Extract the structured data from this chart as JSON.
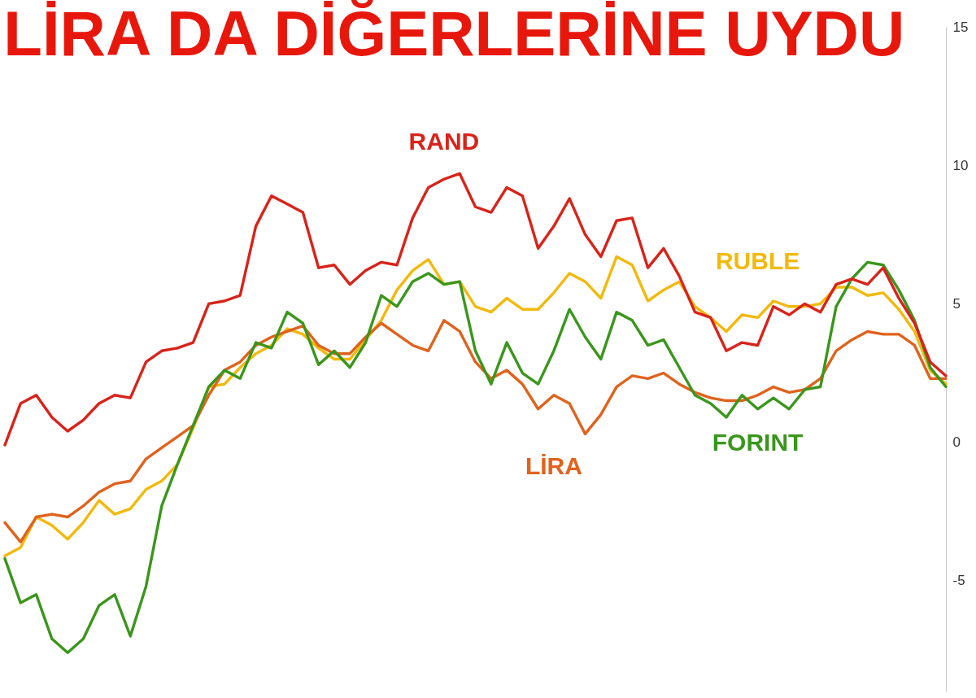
{
  "chart_data": {
    "type": "line",
    "title": "LİRA DA DİĞERLERİNE UYDU",
    "categories": [
      null,
      null,
      null,
      null,
      null,
      null,
      null,
      null,
      null,
      null,
      null,
      null,
      null,
      null,
      null,
      null,
      null,
      null,
      null,
      null,
      null,
      null,
      null,
      null,
      null,
      null,
      null,
      null,
      null,
      null,
      null,
      null,
      null,
      null,
      null,
      null,
      null,
      null,
      null,
      null,
      null,
      null,
      null,
      null,
      null,
      null,
      null,
      null,
      null,
      null,
      null,
      null,
      null,
      null,
      null,
      null,
      null,
      null,
      null,
      null,
      null
    ],
    "series": [
      {
        "name": "RUBLE",
        "color": "#f2b90c",
        "values": [
          -4.1,
          -3.8,
          -2.7,
          -3.0,
          -3.5,
          -2.9,
          -2.1,
          -2.6,
          -2.4,
          -1.7,
          -1.4,
          -0.8,
          0.5,
          2.0,
          2.1,
          2.7,
          3.2,
          3.5,
          4.1,
          3.9,
          3.4,
          3.0,
          3.0,
          3.7,
          4.4,
          5.5,
          6.2,
          6.6,
          5.7,
          5.8,
          4.9,
          4.7,
          5.2,
          4.8,
          4.8,
          5.4,
          6.1,
          5.8,
          5.2,
          6.7,
          6.4,
          5.1,
          5.5,
          5.8,
          4.9,
          4.5,
          4.0,
          4.6,
          4.5,
          5.1,
          4.9,
          4.9,
          5.0,
          5.6,
          5.6,
          5.3,
          5.4,
          4.8,
          4.0,
          2.6,
          2.1
        ]
      },
      {
        "name": "LİRA",
        "color": "#e0621c",
        "values": [
          -2.9,
          -3.6,
          -2.7,
          -2.6,
          -2.7,
          -2.3,
          -1.8,
          -1.5,
          -1.4,
          -0.6,
          -0.2,
          0.2,
          0.6,
          1.7,
          2.6,
          2.9,
          3.5,
          3.8,
          4.0,
          4.2,
          3.5,
          3.2,
          3.2,
          3.8,
          4.3,
          3.9,
          3.5,
          3.3,
          4.4,
          4.0,
          2.9,
          2.3,
          2.6,
          2.1,
          1.2,
          1.7,
          1.4,
          0.3,
          1.0,
          2.0,
          2.4,
          2.3,
          2.5,
          2.1,
          1.8,
          1.6,
          1.5,
          1.5,
          1.7,
          2.0,
          1.8,
          1.9,
          2.3,
          3.3,
          3.7,
          4.0,
          3.9,
          3.9,
          3.5,
          2.3,
          2.3
        ]
      },
      {
        "name": "FORINT",
        "color": "#3a961c",
        "values": [
          -4.2,
          -5.8,
          -5.5,
          -7.1,
          -7.6,
          -7.1,
          -5.9,
          -5.5,
          -7.0,
          -5.2,
          -2.3,
          -0.8,
          0.6,
          2.0,
          2.6,
          2.3,
          3.6,
          3.4,
          4.7,
          4.3,
          2.8,
          3.3,
          2.7,
          3.6,
          5.3,
          4.9,
          5.8,
          6.1,
          5.7,
          5.8,
          3.3,
          2.1,
          3.6,
          2.5,
          2.1,
          3.3,
          4.8,
          3.8,
          3.0,
          4.7,
          4.4,
          3.5,
          3.7,
          2.7,
          1.7,
          1.4,
          0.9,
          1.7,
          1.2,
          1.6,
          1.2,
          1.9,
          2.0,
          4.9,
          5.9,
          6.5,
          6.4,
          5.5,
          4.4,
          2.7,
          2.0
        ]
      },
      {
        "name": "RAND",
        "color": "#d8231a",
        "values": [
          -0.1,
          1.4,
          1.7,
          0.9,
          0.4,
          0.8,
          1.4,
          1.7,
          1.6,
          2.9,
          3.3,
          3.4,
          3.6,
          5.0,
          5.1,
          5.3,
          7.8,
          8.9,
          8.6,
          8.3,
          6.3,
          6.4,
          5.7,
          6.2,
          6.5,
          6.4,
          8.1,
          9.2,
          9.5,
          9.7,
          8.5,
          8.3,
          9.2,
          8.9,
          7.0,
          7.8,
          8.8,
          7.5,
          6.7,
          8.0,
          8.1,
          6.3,
          7.0,
          6.0,
          4.7,
          4.5,
          3.3,
          3.6,
          3.5,
          4.9,
          4.6,
          5.0,
          4.7,
          5.7,
          5.9,
          5.7,
          6.3,
          5.2,
          4.3,
          2.9,
          2.4
        ]
      }
    ],
    "ylim": [
      -9,
      15
    ],
    "yticks": [
      -5,
      0,
      5,
      10,
      15
    ],
    "tick_labels": "y"
  }
}
